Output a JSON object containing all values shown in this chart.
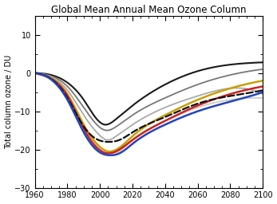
{
  "title": "Global Mean Annual Mean Ozone Column",
  "ylabel": "Total column ozone / DU",
  "xlim": [
    1960,
    2100
  ],
  "ylim": [
    -30,
    15
  ],
  "yticks": [
    -30,
    -20,
    -10,
    0,
    10
  ],
  "xticks": [
    1960,
    1980,
    2000,
    2020,
    2040,
    2060,
    2080,
    2100
  ],
  "x_start": 1960,
  "x_end": 2100,
  "curves": [
    {
      "name": "dark_black_top",
      "color": "#1a1a1a",
      "lw": 1.5,
      "dashed": false,
      "knots_x": [
        1960,
        1970,
        1980,
        1990,
        1997,
        2003,
        2010,
        2020,
        2040,
        2060,
        2080,
        2100
      ],
      "knots_y": [
        0.0,
        -0.5,
        -2.5,
        -7.0,
        -11.5,
        -13.5,
        -12.0,
        -8.5,
        -3.0,
        0.5,
        2.2,
        2.8
      ]
    },
    {
      "name": "medium_gray_1",
      "color": "#777777",
      "lw": 1.3,
      "dashed": false,
      "knots_x": [
        1960,
        1970,
        1980,
        1990,
        1997,
        2004,
        2010,
        2020,
        2040,
        2060,
        2080,
        2100
      ],
      "knots_y": [
        0.0,
        -0.8,
        -3.5,
        -9.0,
        -13.0,
        -15.0,
        -14.0,
        -11.0,
        -6.5,
        -3.0,
        -0.5,
        1.0
      ]
    },
    {
      "name": "light_gray_upper",
      "color": "#aaaaaa",
      "lw": 1.3,
      "dashed": false,
      "knots_x": [
        1960,
        1970,
        1980,
        1990,
        1998,
        2005,
        2010,
        2020,
        2040,
        2060,
        2080,
        2100
      ],
      "knots_y": [
        0.0,
        -1.0,
        -4.5,
        -11.0,
        -15.5,
        -17.5,
        -16.5,
        -13.5,
        -9.0,
        -6.0,
        -4.0,
        -5.5
      ]
    },
    {
      "name": "light_gray_lower",
      "color": "#cccccc",
      "lw": 1.3,
      "dashed": false,
      "knots_x": [
        1960,
        1970,
        1980,
        1990,
        1999,
        2006,
        2012,
        2020,
        2040,
        2060,
        2080,
        2100
      ],
      "knots_y": [
        0.0,
        -1.2,
        -5.5,
        -13.5,
        -19.5,
        -21.5,
        -20.5,
        -17.5,
        -12.5,
        -9.0,
        -7.0,
        -6.5
      ]
    },
    {
      "name": "yellow_solid",
      "color": "#c8a000",
      "lw": 1.8,
      "dashed": false,
      "knots_x": [
        1960,
        1970,
        1980,
        1990,
        1998,
        2005,
        2012,
        2020,
        2040,
        2060,
        2080,
        2100
      ],
      "knots_y": [
        0.0,
        -1.3,
        -5.5,
        -13.5,
        -18.5,
        -20.5,
        -19.5,
        -16.5,
        -11.0,
        -7.0,
        -4.0,
        -2.0
      ]
    },
    {
      "name": "red_solid",
      "color": "#cc2222",
      "lw": 1.8,
      "dashed": false,
      "knots_x": [
        1960,
        1970,
        1980,
        1990,
        1998,
        2005,
        2012,
        2020,
        2040,
        2060,
        2080,
        2100
      ],
      "knots_y": [
        0.0,
        -1.5,
        -6.0,
        -14.5,
        -19.5,
        -21.0,
        -20.0,
        -17.5,
        -12.5,
        -8.5,
        -5.5,
        -3.5
      ]
    },
    {
      "name": "black_dashed",
      "color": "#111111",
      "lw": 1.6,
      "dashed": true,
      "knots_x": [
        1960,
        1970,
        1980,
        1990,
        1999,
        2006,
        2012,
        2020,
        2040,
        2060,
        2080,
        2100
      ],
      "knots_y": [
        0.0,
        -1.5,
        -6.5,
        -14.0,
        -17.5,
        -18.0,
        -17.5,
        -15.5,
        -11.5,
        -8.0,
        -6.0,
        -4.5
      ]
    },
    {
      "name": "blue_solid",
      "color": "#2244bb",
      "lw": 1.8,
      "dashed": false,
      "knots_x": [
        1960,
        1970,
        1980,
        1990,
        1999,
        2006,
        2012,
        2020,
        2040,
        2060,
        2080,
        2100
      ],
      "knots_y": [
        0.0,
        -1.7,
        -7.0,
        -15.5,
        -20.5,
        -21.5,
        -21.0,
        -18.5,
        -13.5,
        -10.0,
        -7.5,
        -5.0
      ]
    }
  ]
}
